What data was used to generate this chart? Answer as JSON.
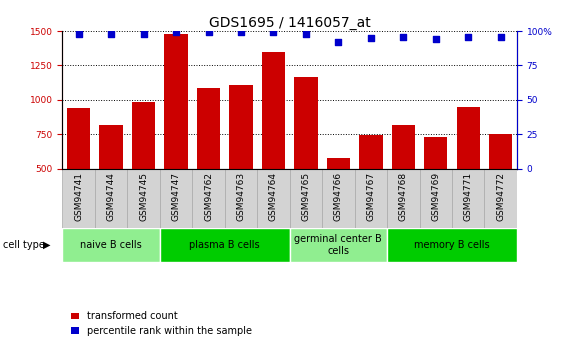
{
  "title": "GDS1695 / 1416057_at",
  "samples": [
    "GSM94741",
    "GSM94744",
    "GSM94745",
    "GSM94747",
    "GSM94762",
    "GSM94763",
    "GSM94764",
    "GSM94765",
    "GSM94766",
    "GSM94767",
    "GSM94768",
    "GSM94769",
    "GSM94771",
    "GSM94772"
  ],
  "bar_values": [
    940,
    820,
    985,
    1480,
    1090,
    1110,
    1350,
    1165,
    575,
    745,
    820,
    730,
    950,
    755
  ],
  "dot_values": [
    98,
    98,
    98,
    99,
    99,
    99,
    99,
    98,
    92,
    95,
    96,
    94,
    96,
    96
  ],
  "ylim_left": [
    500,
    1500
  ],
  "ylim_right": [
    0,
    100
  ],
  "yticks_left": [
    500,
    750,
    1000,
    1250,
    1500
  ],
  "yticks_right": [
    0,
    25,
    50,
    75,
    100
  ],
  "bar_color": "#cc0000",
  "dot_color": "#0000cc",
  "cell_types": [
    {
      "label": "naive B cells",
      "start": 0,
      "end": 3,
      "color": "#90ee90"
    },
    {
      "label": "plasma B cells",
      "start": 3,
      "end": 7,
      "color": "#00cc00"
    },
    {
      "label": "germinal center B\ncells",
      "start": 7,
      "end": 10,
      "color": "#90ee90"
    },
    {
      "label": "memory B cells",
      "start": 10,
      "end": 14,
      "color": "#00cc00"
    }
  ],
  "cell_type_label": "cell type",
  "legend_bar_label": "transformed count",
  "legend_dot_label": "percentile rank within the sample",
  "title_fontsize": 10,
  "tick_fontsize": 6.5,
  "cell_label_fontsize": 7,
  "legend_fontsize": 7,
  "sample_box_color": "#d3d3d3",
  "sample_box_edge": "#aaaaaa"
}
